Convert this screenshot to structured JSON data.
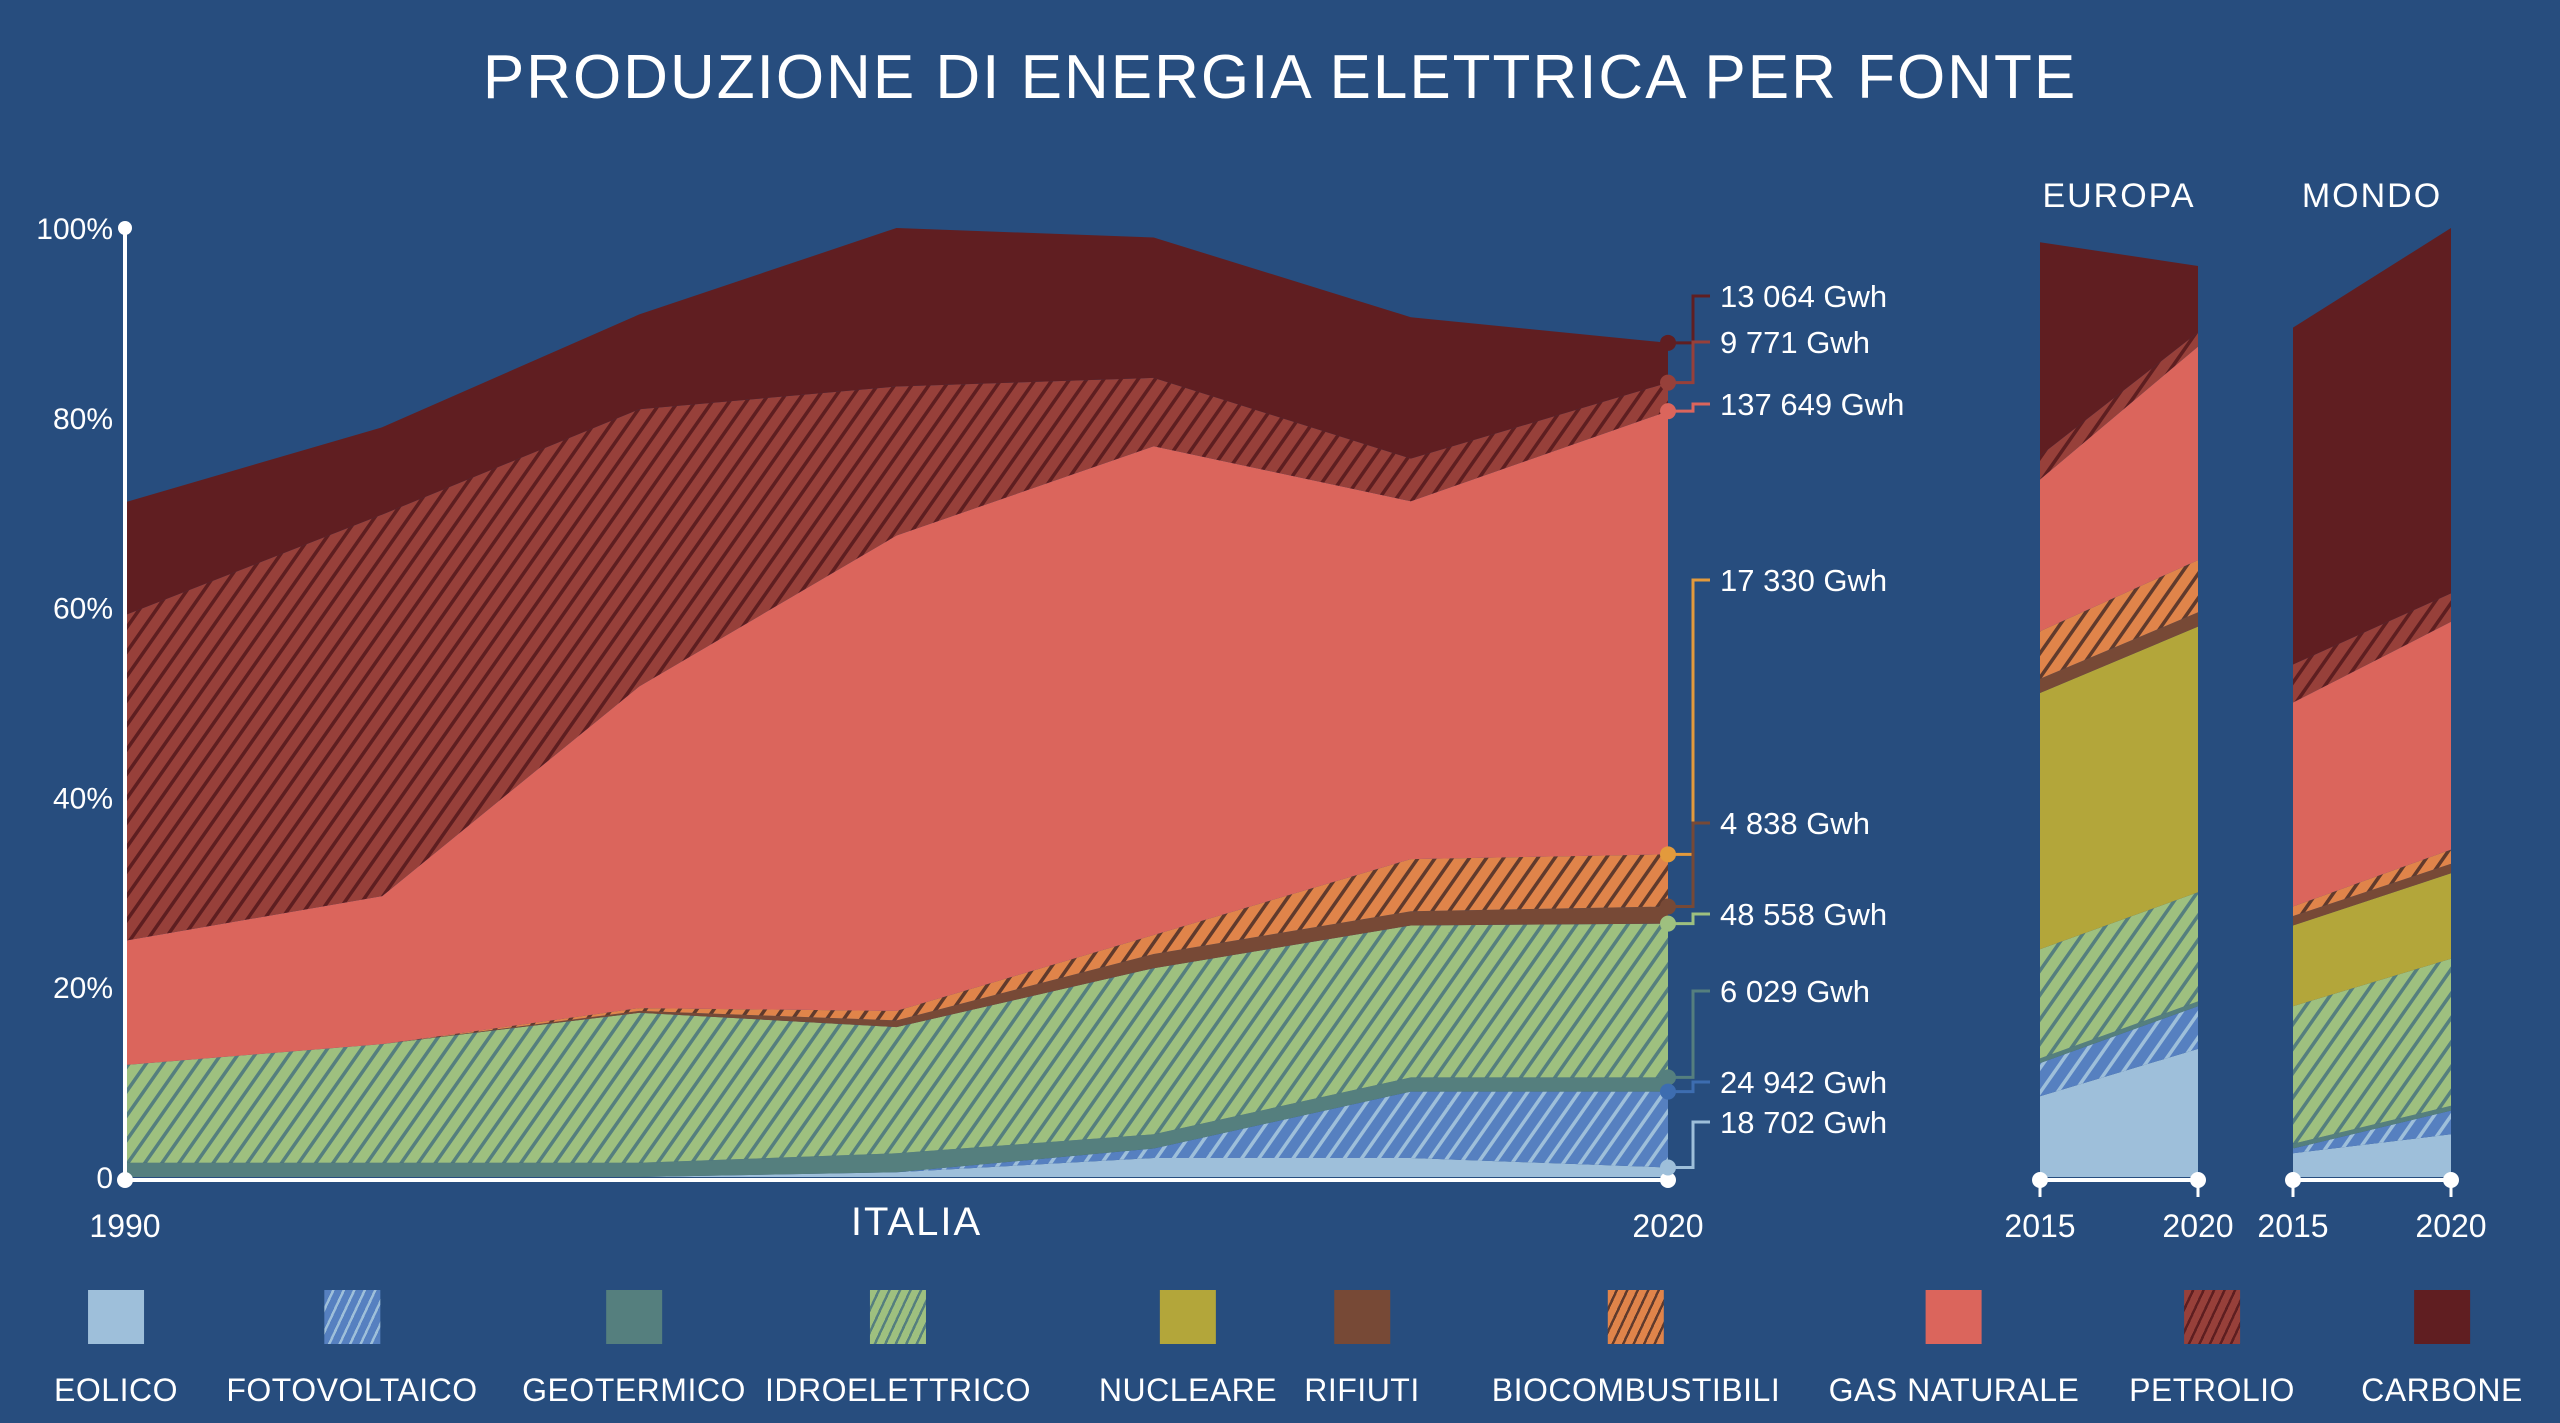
{
  "title": "PRODUZIONE DI ENERGIA ELETTRICA PER FONTE",
  "chart_data": {
    "type": "area",
    "stacked": true,
    "title": "PRODUZIONE DI ENERGIA ELETTRICA PER FONTE",
    "ylabel": "",
    "ylim": [
      0,
      100
    ],
    "y_ticks": [
      "0",
      "20%",
      "40%",
      "60%",
      "80%",
      "100%"
    ],
    "sources": [
      {
        "key": "eolico",
        "name": "EOLICO",
        "color": "#9ebfda",
        "hatch": null
      },
      {
        "key": "fotovoltaico",
        "name": "FOTOVOLTAICO",
        "color": "#5680c0",
        "hatch": "#9ebfda"
      },
      {
        "key": "geotermico",
        "name": "GEOTERMICO",
        "color": "#557f7e",
        "hatch": null
      },
      {
        "key": "idroelettrico",
        "name": "IDROELETTRICO",
        "color": "#9ec07f",
        "hatch": "#557f7e"
      },
      {
        "key": "nucleare",
        "name": "NUCLEARE",
        "color": "#b3a63a",
        "hatch": null
      },
      {
        "key": "rifiuti",
        "name": "RIFIUTI",
        "color": "#774936",
        "hatch": null
      },
      {
        "key": "biocombustibili",
        "name": "BIOCOMBUSTIBILI",
        "color": "#e0844a",
        "hatch": "#603a2c"
      },
      {
        "key": "gas",
        "name": "GAS NATURALE",
        "color": "#db655c",
        "hatch": null
      },
      {
        "key": "petrolio",
        "name": "PETROLIO",
        "color": "#97403a",
        "hatch": "#5e1e20"
      },
      {
        "key": "carbone",
        "name": "CARBONE",
        "color": "#601e21",
        "hatch": null
      }
    ],
    "panels": [
      {
        "name": "ITALIA",
        "x": [
          1990,
          1995,
          2000,
          2005,
          2010,
          2015,
          2020
        ],
        "x_tick_labels": [
          "1990",
          "2020"
        ],
        "series": [
          {
            "name": "EOLICO",
            "values": [
              0,
              0,
              0,
              0.5,
              2,
              2,
              1
            ]
          },
          {
            "name": "FOTOVOLTAICO",
            "values": [
              0,
              0,
              0,
              0,
              1,
              7,
              8
            ]
          },
          {
            "name": "GEOTERMICO",
            "values": [
              1.5,
              1.5,
              1.5,
              2,
              1.5,
              1.5,
              1.5
            ]
          },
          {
            "name": "IDROELETTRICO",
            "values": [
              10.3,
              12.5,
              15.8,
              13.3,
              17.5,
              16,
              16.2
            ]
          },
          {
            "name": "NUCLEARE",
            "values": [
              0,
              0,
              0,
              0,
              0,
              0,
              0
            ]
          },
          {
            "name": "RIFIUTI",
            "values": [
              0,
              0,
              0.2,
              0.7,
              1.5,
              1.5,
              1.8
            ]
          },
          {
            "name": "BIOCOMBUSTIBILI",
            "values": [
              0,
              0,
              0.3,
              1,
              2,
              5.5,
              5.5
            ]
          },
          {
            "name": "GAS NATURALE",
            "values": [
              13.1,
              15.6,
              33.9,
              50.1,
              51.5,
              37.7,
              46.7
            ]
          },
          {
            "name": "PETROLIO",
            "values": [
              34.3,
              40.2,
              29.2,
              15.7,
              7.2,
              4.5,
              3
            ]
          },
          {
            "name": "CARBONE",
            "values": [
              11.9,
              9.2,
              10,
              16.7,
              14.8,
              14.9,
              4.2
            ]
          }
        ],
        "annotations_2020": [
          {
            "source": "CARBONE",
            "label": "13 064 Gwh",
            "color": "#601e21"
          },
          {
            "source": "PETROLIO",
            "label": "9 771 Gwh",
            "color": "#97403a"
          },
          {
            "source": "GAS NATURALE",
            "label": "137 649 Gwh",
            "color": "#db655c"
          },
          {
            "source": "BIOCOMBUSTIBILI",
            "label": "17 330 Gwh",
            "color": "#e39a3c"
          },
          {
            "source": "RIFIUTI",
            "label": "4 838 Gwh",
            "color": "#774936"
          },
          {
            "source": "IDROELETTRICO",
            "label": "48 558 Gwh",
            "color": "#9ec07f"
          },
          {
            "source": "GEOTERMICO",
            "label": "6 029 Gwh",
            "color": "#557f7e"
          },
          {
            "source": "FOTOVOLTAICO",
            "label": "24 942 Gwh",
            "color": "#3d6db0"
          },
          {
            "source": "EOLICO",
            "label": "18 702 Gwh",
            "color": "#9ebfda"
          }
        ]
      },
      {
        "name": "EUROPA",
        "x": [
          2015,
          2020
        ],
        "x_tick_labels": [
          "2015",
          "2020"
        ],
        "series": [
          {
            "name": "EOLICO",
            "values": [
              8.5,
              13.5
            ]
          },
          {
            "name": "FOTOVOLTAICO",
            "values": [
              3.5,
              4.5
            ]
          },
          {
            "name": "GEOTERMICO",
            "values": [
              0.5,
              0.5
            ]
          },
          {
            "name": "IDROELETTRICO",
            "values": [
              11.5,
              11.5
            ]
          },
          {
            "name": "NUCLEARE",
            "values": [
              27,
              28
            ]
          },
          {
            "name": "RIFIUTI",
            "values": [
              1.5,
              1.5
            ]
          },
          {
            "name": "BIOCOMBUSTIBILI",
            "values": [
              5,
              5.5
            ]
          },
          {
            "name": "GAS NATURALE",
            "values": [
              16,
              22.5
            ]
          },
          {
            "name": "PETROLIO",
            "values": [
              2.5,
              1.5
            ]
          },
          {
            "name": "CARBONE",
            "values": [
              22.5,
              7
            ]
          }
        ]
      },
      {
        "name": "MONDO",
        "x": [
          2015,
          2020
        ],
        "x_tick_labels": [
          "2015",
          "2020"
        ],
        "series": [
          {
            "name": "EOLICO",
            "values": [
              2.5,
              4.5
            ]
          },
          {
            "name": "FOTOVOLTAICO",
            "values": [
              0.5,
              2.5
            ]
          },
          {
            "name": "GEOTERMICO",
            "values": [
              0.5,
              0.5
            ]
          },
          {
            "name": "IDROELETTRICO",
            "values": [
              14.5,
              15.5
            ]
          },
          {
            "name": "NUCLEARE",
            "values": [
              8.5,
              9
            ]
          },
          {
            "name": "RIFIUTI",
            "values": [
              1,
              1
            ]
          },
          {
            "name": "BIOCOMBUSTIBILI",
            "values": [
              1,
              1.5
            ]
          },
          {
            "name": "GAS NATURALE",
            "values": [
              21.5,
              24
            ]
          },
          {
            "name": "PETROLIO",
            "values": [
              4,
              3
            ]
          },
          {
            "name": "CARBONE",
            "values": [
              35.5,
              38.5
            ]
          }
        ]
      }
    ]
  }
}
